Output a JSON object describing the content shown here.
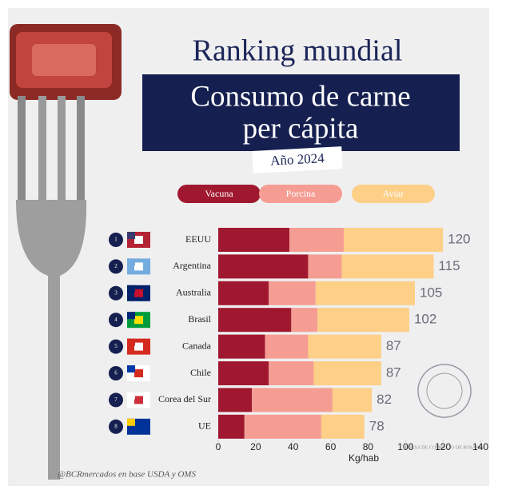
{
  "chart_data": {
    "type": "stacked-barh",
    "title": "Ranking mundial",
    "subtitle": [
      "Consumo de carne",
      "per cápita"
    ],
    "year": "Año 2024",
    "categories": [
      "EEUU",
      "Argentina",
      "Australia",
      "Brasil",
      "Canada",
      "Chile",
      "Corea del Sur",
      "UE"
    ],
    "ranks": [
      1,
      2,
      3,
      4,
      5,
      6,
      7,
      8
    ],
    "series": [
      {
        "name": "Vacuna",
        "color": "#a0182f",
        "values": [
          38,
          48,
          27,
          39,
          25,
          27,
          18,
          14
        ]
      },
      {
        "name": "Porcina",
        "color": "#f59d93",
        "values": [
          29,
          18,
          25,
          14,
          23,
          24,
          43,
          41
        ]
      },
      {
        "name": "Aviar",
        "color": "#fdcf87",
        "values": [
          53,
          49,
          53,
          49,
          39,
          36,
          21,
          23
        ]
      }
    ],
    "totals": [
      120,
      115,
      105,
      102,
      87,
      87,
      82,
      78
    ],
    "xlabel": "Kg/hab",
    "xlim": [
      0,
      140
    ],
    "xticks": [
      0,
      20,
      40,
      60,
      80,
      100,
      120,
      140
    ],
    "watermark": "BOLSA DE COMERCIO DE ROSARIO",
    "source": "@BCRmercados en base  USDA y OMS"
  }
}
